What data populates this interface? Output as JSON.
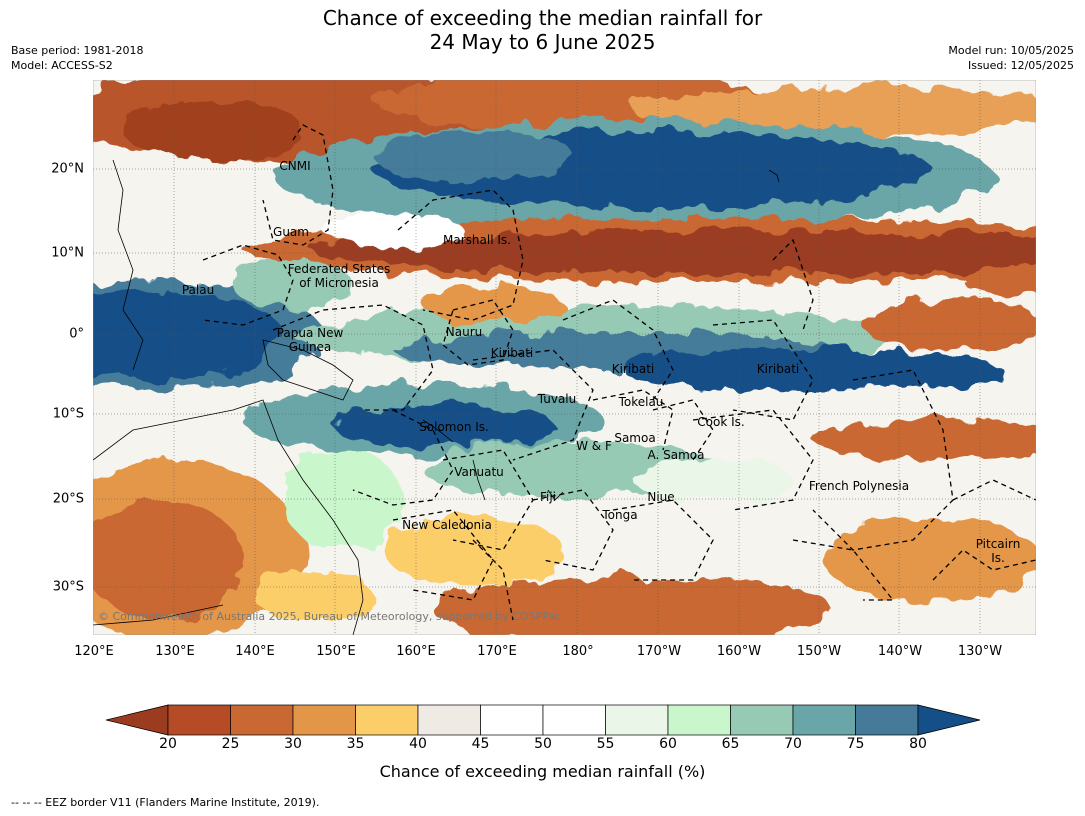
{
  "title_line1": "Chance of exceeding the median rainfall for",
  "title_line2": "24 May to 6 June 2025",
  "meta_left": [
    "Base period: 1981-2018",
    "Model: ACCESS-S2"
  ],
  "meta_right": [
    "Model run: 10/05/2025",
    "Issued: 12/05/2025"
  ],
  "lon_ticks": [
    "120°E",
    "130°E",
    "140°E",
    "150°E",
    "160°E",
    "170°E",
    "180°",
    "170°W",
    "160°W",
    "150°W",
    "140°W",
    "130°W"
  ],
  "lat_ticks": [
    "20°N",
    "10°N",
    "0°",
    "10°S",
    "20°S",
    "30°S"
  ],
  "regions": [
    "CNMI",
    "Guam",
    "Marshall Is.",
    "Federated States\nof Micronesia",
    "Palau",
    "Papua New\nGuinea",
    "Nauru",
    "Kiribati",
    "Kiribati",
    "Kiribati",
    "Tuvalu",
    "Tokelau",
    "Cook Is.",
    "Solomon Is.",
    "Samoa",
    "W & F",
    "A. Samoa",
    "Vanuatu",
    "French Polynesia",
    "Fiji",
    "Niue",
    "Tonga",
    "New Caledonia",
    "Pitcairn\nIs."
  ],
  "copyright": "© Commonwealth of Australia 2025, Bureau of Meteorology, supported by COSPPac",
  "colorbar": {
    "ticks": [
      "20",
      "25",
      "30",
      "35",
      "40",
      "45",
      "50",
      "55",
      "60",
      "65",
      "70",
      "75",
      "80"
    ],
    "label": "Chance of exceeding median rainfall (%)",
    "colors": [
      "#9b3c20",
      "#b54c26",
      "#c96832",
      "#e49648",
      "#fcce6a",
      "#efebe4",
      "#ffffff",
      "#ffffff",
      "#eaf7e8",
      "#c9f6cb",
      "#96cab5",
      "#6aa5a7",
      "#457b99",
      "#154f87"
    ]
  },
  "footnote": "--  --  -- EEZ border V11 (Flanders Marine Institute, 2019)."
}
